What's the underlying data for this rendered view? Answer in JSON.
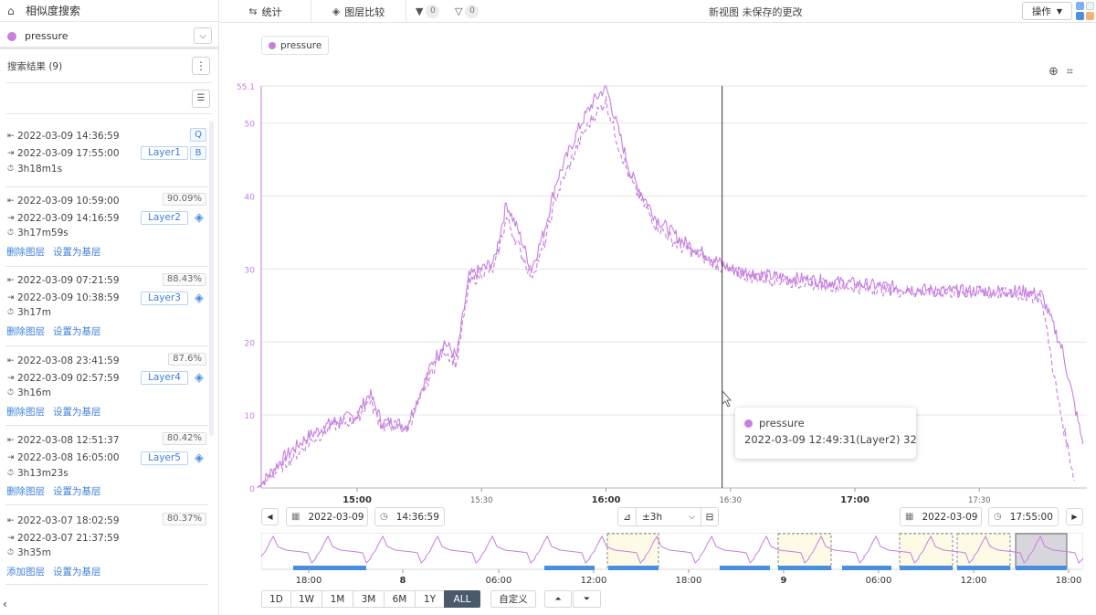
{
  "colors": {
    "series": "#c77ee0",
    "accent": "#3f80d8",
    "highlight": "#fdfbe6"
  },
  "left_panel": {
    "title": "相似度搜索",
    "selected_series": "pressure",
    "results_header": "搜索结果 (9)",
    "cards": [
      {
        "start": "2022-03-09 14:36:59",
        "end": "2022-03-09 17:55:00",
        "duration": "3h18m1s",
        "layer": "Layer1",
        "q": "Q",
        "b": "B"
      },
      {
        "start": "2022-03-09 10:59:00",
        "end": "2022-03-09 14:16:59",
        "duration": "3h17m59s",
        "layer": "Layer2",
        "pct": "90.09%",
        "link1": "删除图层",
        "link2": "设置为基层"
      },
      {
        "start": "2022-03-09 07:21:59",
        "end": "2022-03-09 10:38:59",
        "duration": "3h17m",
        "layer": "Layer3",
        "pct": "88.43%",
        "link1": "删除图层",
        "link2": "设置为基层"
      },
      {
        "start": "2022-03-08 23:41:59",
        "end": "2022-03-09 02:57:59",
        "duration": "3h16m",
        "layer": "Layer4",
        "pct": "87.6%",
        "link1": "删除图层",
        "link2": "设置为基层"
      },
      {
        "start": "2022-03-08 12:51:37",
        "end": "2022-03-08 16:05:00",
        "duration": "3h13m23s",
        "layer": "Layer5",
        "pct": "80.42%",
        "link1": "删除图层",
        "link2": "设置为基层"
      },
      {
        "start": "2022-03-07 18:02:59",
        "end": "2022-03-07 21:37:59",
        "duration": "3h35m",
        "pct": "80.37%",
        "link1": "添加图层",
        "link2": "设置为基层"
      }
    ]
  },
  "toolbar": {
    "tab_stats": "统计",
    "tab_compare": "图层比较",
    "filter1_count": "0",
    "filter2_count": "0",
    "view_title": "新视图 未保存的更改",
    "ops_label": "操作"
  },
  "legend": {
    "label": "pressure"
  },
  "tooltip": {
    "name": "pressure",
    "value": "2022-03-09 12:49:31(Layer2) 32"
  },
  "range": {
    "start_date": "2022-03-09",
    "start_time": "14:36:59",
    "end_date": "2022-03-09",
    "end_time": "17:55:00",
    "window": "±3h"
  },
  "overview_labels": [
    "18:00",
    "8",
    "06:00",
    "12:00",
    "18:00",
    "9",
    "06:00",
    "12:00",
    "18:00"
  ],
  "periods": [
    "1D",
    "1W",
    "1M",
    "3M",
    "6M",
    "1Y",
    "ALL"
  ],
  "active_period": "ALL",
  "custom_label": "自定义",
  "chart_data": {
    "type": "line",
    "ylim": [
      0,
      55.1
    ],
    "ytick_values": [
      0,
      10,
      20,
      30,
      40,
      50,
      55.1
    ],
    "ytick_labels": [
      "0",
      "10",
      "20",
      "30",
      "40",
      "50",
      "55.1"
    ],
    "xtick_labels": [
      "15:00",
      "15:30",
      "16:00",
      "16:30",
      "17:00",
      "17:30"
    ],
    "xtick_bold": [
      true,
      false,
      true,
      false,
      true,
      false
    ],
    "cursor_time": "16:28",
    "series": [
      {
        "name": "pressure",
        "style": "solid",
        "x": [
          "14:36",
          "14:42",
          "14:48",
          "14:54",
          "15:00",
          "15:03",
          "15:06",
          "15:09",
          "15:12",
          "15:18",
          "15:21",
          "15:24",
          "15:27",
          "15:30",
          "15:33",
          "15:36",
          "15:39",
          "15:42",
          "15:45",
          "15:48",
          "15:51",
          "15:54",
          "15:57",
          "16:00",
          "16:03",
          "16:06",
          "16:12",
          "16:18",
          "16:24",
          "16:30",
          "16:40",
          "16:50",
          "17:00",
          "17:10",
          "17:20",
          "17:30",
          "17:40",
          "17:45",
          "17:50",
          "17:55"
        ],
        "y": [
          0,
          4,
          7,
          9,
          10,
          13,
          9,
          9,
          8.5,
          17,
          20,
          18,
          29,
          30,
          31,
          39,
          35,
          30,
          35,
          42,
          46,
          50,
          53,
          55,
          49,
          43,
          37,
          34,
          32,
          30,
          29,
          28.5,
          28,
          27.5,
          27,
          27,
          27,
          26.5,
          19,
          6
        ]
      },
      {
        "name": "",
        "style": "dashed",
        "x": [
          "14:36",
          "14:42",
          "14:48",
          "14:54",
          "15:00",
          "15:03",
          "15:06",
          "15:09",
          "15:12",
          "15:18",
          "15:21",
          "15:24",
          "15:27",
          "15:30",
          "15:33",
          "15:36",
          "15:39",
          "15:42",
          "15:45",
          "15:48",
          "15:51",
          "15:54",
          "15:57",
          "16:00",
          "16:03",
          "16:06",
          "16:12",
          "16:18",
          "16:24",
          "16:30",
          "16:40",
          "16:50",
          "17:00",
          "17:10",
          "17:20",
          "17:30",
          "17:40",
          "17:45",
          "17:49",
          "17:53"
        ],
        "y": [
          0,
          3,
          6,
          8.5,
          9.5,
          12,
          8.5,
          8.5,
          8,
          16,
          19,
          17,
          28,
          29.5,
          30,
          37,
          33,
          29,
          33,
          40,
          44,
          48,
          51,
          53,
          47,
          42,
          36,
          33,
          31.5,
          29.5,
          28.5,
          28,
          27.5,
          27,
          26.8,
          26.8,
          26.5,
          26,
          12,
          1
        ]
      }
    ]
  }
}
